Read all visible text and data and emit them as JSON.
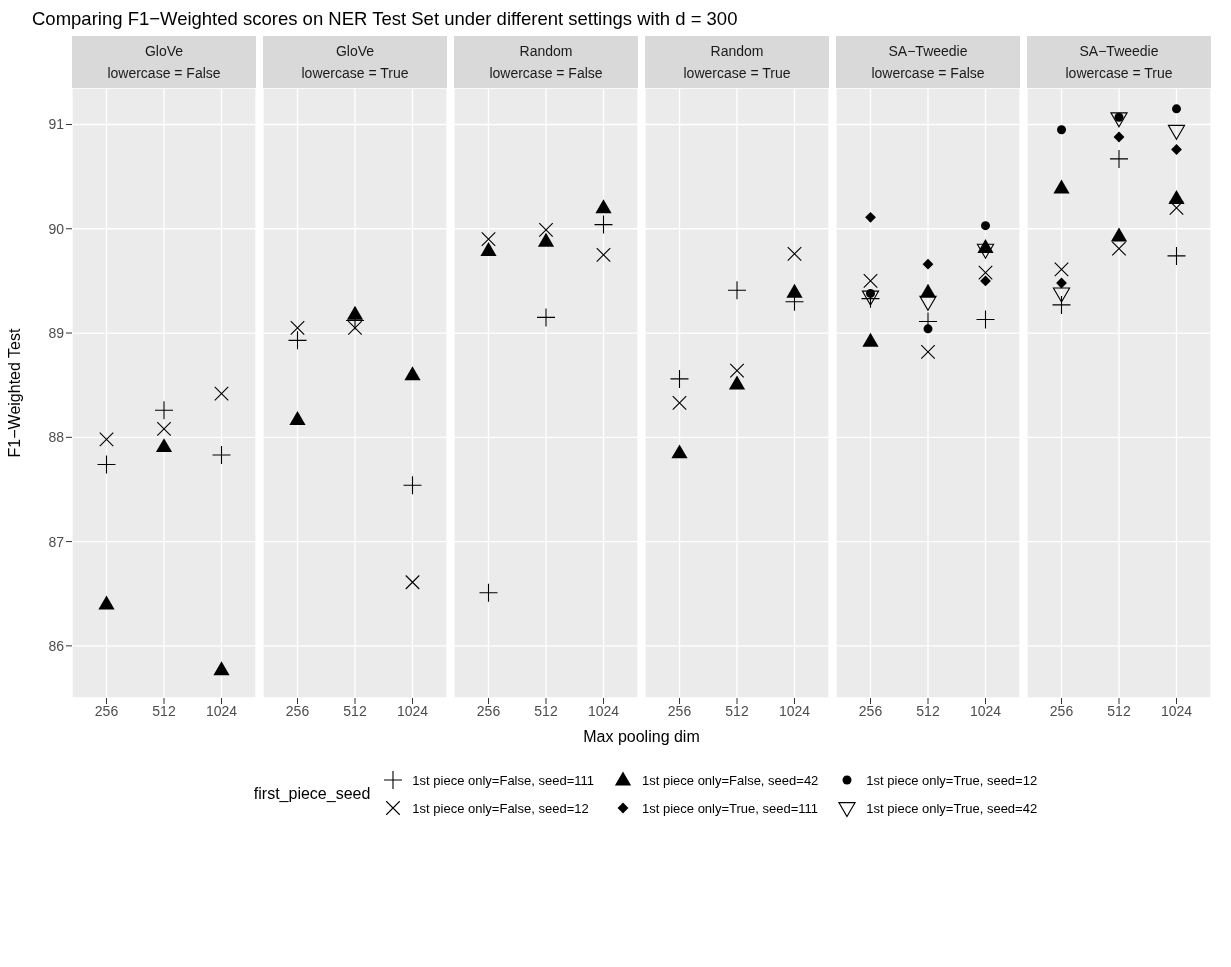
{
  "chart_data": [
    {
      "type": "scatter",
      "title": "GloVe",
      "subtitle": "lowercase = False",
      "annotations": [
        "Comparing F1−Weighted scores on NER Test Set under different settings with d = 300"
      ],
      "ylabel": "F1−Weighted Test",
      "legend_title": "first_piece_seed",
      "legend": "bottom",
      "grid": true,
      "categories": [
        "256",
        "512",
        "1024"
      ],
      "ylim": [
        85.5,
        91.35
      ],
      "yticks": [
        86,
        87,
        88,
        89,
        90,
        91
      ],
      "series": [
        {
          "name": "1st piece only=False, seed=111",
          "color": "#000000",
          "marker": "plus",
          "values": [
            87.74,
            88.26,
            87.83
          ]
        },
        {
          "name": "1st piece only=False, seed=12",
          "color": "#000000",
          "marker": "cross",
          "values": [
            87.98,
            88.08,
            88.42
          ]
        },
        {
          "name": "1st piece only=False, seed=42",
          "color": "#000000",
          "marker": "triangle",
          "values": [
            86.4,
            87.91,
            85.77
          ]
        }
      ]
    },
    {
      "type": "scatter",
      "title": "GloVe",
      "subtitle": "lowercase = True",
      "tick_labels": "x",
      "legend": "bottom",
      "grid": true,
      "categories": [
        "256",
        "512",
        "1024"
      ],
      "ylim": [
        85.5,
        91.35
      ],
      "yticks": [
        86,
        87,
        88,
        89,
        90,
        91
      ],
      "series": [
        {
          "name": "1st piece only=False, seed=111",
          "color": "#000000",
          "marker": "plus",
          "values": [
            88.93,
            89.12,
            87.54
          ]
        },
        {
          "name": "1st piece only=False, seed=12",
          "color": "#000000",
          "marker": "cross",
          "values": [
            89.05,
            89.05,
            86.61
          ]
        },
        {
          "name": "1st piece only=False, seed=42",
          "color": "#000000",
          "marker": "triangle",
          "values": [
            88.17,
            89.18,
            88.6
          ]
        }
      ]
    },
    {
      "type": "scatter",
      "title": "Random",
      "subtitle": "lowercase = False",
      "xlabel": "Max pooling dim",
      "tick_labels": "x",
      "legend": "bottom",
      "grid": true,
      "categories": [
        "256",
        "512",
        "1024"
      ],
      "ylim": [
        85.5,
        91.35
      ],
      "yticks": [
        86,
        87,
        88,
        89,
        90,
        91
      ],
      "series": [
        {
          "name": "1st piece only=False, seed=111",
          "color": "#000000",
          "marker": "plus",
          "values": [
            86.51,
            89.15,
            90.04
          ]
        },
        {
          "name": "1st piece only=False, seed=12",
          "color": "#000000",
          "marker": "cross",
          "values": [
            89.9,
            89.99,
            89.75
          ]
        },
        {
          "name": "1st piece only=False, seed=42",
          "color": "#000000",
          "marker": "triangle",
          "values": [
            89.79,
            89.88,
            90.2
          ]
        }
      ]
    },
    {
      "type": "scatter",
      "title": "Random",
      "subtitle": "lowercase = True",
      "tick_labels": "x",
      "legend": "bottom",
      "grid": true,
      "categories": [
        "256",
        "512",
        "1024"
      ],
      "ylim": [
        85.5,
        91.35
      ],
      "yticks": [
        86,
        87,
        88,
        89,
        90,
        91
      ],
      "series": [
        {
          "name": "1st piece only=False, seed=111",
          "color": "#000000",
          "marker": "plus",
          "values": [
            88.56,
            89.41,
            89.3
          ]
        },
        {
          "name": "1st piece only=False, seed=12",
          "color": "#000000",
          "marker": "cross",
          "values": [
            88.33,
            88.64,
            89.76
          ]
        },
        {
          "name": "1st piece only=False, seed=42",
          "color": "#000000",
          "marker": "triangle",
          "values": [
            87.85,
            88.51,
            89.39
          ]
        }
      ]
    },
    {
      "type": "scatter",
      "title": "SA−Tweedie",
      "subtitle": "lowercase = False",
      "tick_labels": "x",
      "legend": "bottom",
      "grid": true,
      "categories": [
        "256",
        "512",
        "1024"
      ],
      "ylim": [
        85.5,
        91.35
      ],
      "yticks": [
        86,
        87,
        88,
        89,
        90,
        91
      ],
      "series": [
        {
          "name": "1st piece only=False, seed=111",
          "color": "#000000",
          "marker": "plus",
          "values": [
            89.33,
            89.11,
            89.13
          ]
        },
        {
          "name": "1st piece only=False, seed=12",
          "color": "#000000",
          "marker": "cross",
          "values": [
            89.5,
            88.82,
            89.58
          ]
        },
        {
          "name": "1st piece only=False, seed=42",
          "color": "#000000",
          "marker": "triangle",
          "values": [
            88.92,
            89.39,
            89.82
          ]
        },
        {
          "name": "1st piece only=True, seed=111",
          "color": "#000000",
          "marker": "diamond",
          "values": [
            90.11,
            89.66,
            89.5
          ]
        },
        {
          "name": "1st piece only=True, seed=12",
          "color": "#000000",
          "marker": "circle",
          "values": [
            89.38,
            89.04,
            90.03
          ]
        },
        {
          "name": "1st piece only=True, seed=42",
          "color": "#000000",
          "marker": "triangle-down",
          "values": [
            89.35,
            89.3,
            89.8
          ]
        }
      ]
    },
    {
      "type": "scatter",
      "title": "SA−Tweedie",
      "subtitle": "lowercase = True",
      "tick_labels": "x",
      "legend": "bottom",
      "grid": true,
      "categories": [
        "256",
        "512",
        "1024"
      ],
      "ylim": [
        85.5,
        91.35
      ],
      "yticks": [
        86,
        87,
        88,
        89,
        90,
        91
      ],
      "series": [
        {
          "name": "1st piece only=False, seed=111",
          "color": "#000000",
          "marker": "plus",
          "values": [
            89.27,
            90.67,
            89.74
          ]
        },
        {
          "name": "1st piece only=False, seed=12",
          "color": "#000000",
          "marker": "cross",
          "values": [
            89.61,
            89.81,
            90.2
          ]
        },
        {
          "name": "1st piece only=False, seed=42",
          "color": "#000000",
          "marker": "triangle",
          "values": [
            90.39,
            89.93,
            90.29
          ]
        },
        {
          "name": "1st piece only=True, seed=111",
          "color": "#000000",
          "marker": "diamond",
          "values": [
            89.48,
            90.88,
            90.76
          ]
        },
        {
          "name": "1st piece only=True, seed=12",
          "color": "#000000",
          "marker": "circle",
          "values": [
            90.95,
            91.07,
            91.15
          ]
        },
        {
          "name": "1st piece only=True, seed=42",
          "color": "#000000",
          "marker": "triangle-down",
          "values": [
            89.38,
            91.06,
            90.94
          ]
        }
      ]
    }
  ]
}
